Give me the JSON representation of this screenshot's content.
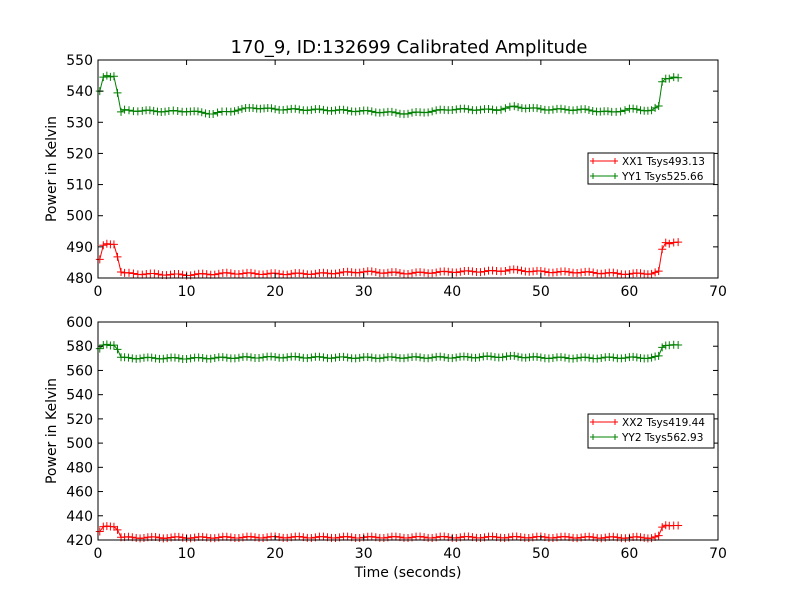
{
  "figure": {
    "title": "170_9, ID:132699 Calibrated Amplitude"
  },
  "chart_data": [
    {
      "type": "line",
      "title": "170_9, ID:132699 Calibrated Amplitude",
      "xlabel": "",
      "ylabel": "Power in Kelvin",
      "xlim": [
        0,
        70
      ],
      "ylim": [
        480,
        550
      ],
      "xticks": [
        "0",
        "10",
        "20",
        "30",
        "40",
        "50",
        "60",
        "70"
      ],
      "yticks": [
        "480",
        "490",
        "500",
        "510",
        "520",
        "530",
        "540",
        "550"
      ],
      "legend_position": "center-right",
      "marker": "plus",
      "series": [
        {
          "name": "XX1 Tsys493.13",
          "color": "#ff0000",
          "x": [
            0.2,
            0.6,
            1.0,
            1.4,
            1.8,
            2.2,
            2.6,
            3.0,
            5.0,
            10.0,
            15.0,
            20.0,
            25.0,
            30.0,
            35.0,
            40.0,
            45.0,
            46.5,
            50.0,
            55.0,
            60.0,
            62.5,
            63.3,
            63.7,
            64.1,
            64.5,
            65.0,
            65.5
          ],
          "y": [
            486.0,
            490.5,
            491.0,
            490.8,
            491.0,
            487.0,
            482.0,
            481.5,
            481.3,
            481.0,
            481.5,
            481.3,
            481.4,
            482.0,
            481.5,
            482.0,
            482.2,
            482.6,
            482.0,
            481.8,
            481.3,
            481.5,
            482.0,
            489.0,
            491.3,
            491.0,
            491.4,
            491.5
          ]
        },
        {
          "name": "YY1 Tsys525.66",
          "color": "#008000",
          "x": [
            0.2,
            0.6,
            1.0,
            1.4,
            1.8,
            2.2,
            2.6,
            3.0,
            5.0,
            8.0,
            10.0,
            13.0,
            15.0,
            17.5,
            20.0,
            25.0,
            30.0,
            35.0,
            40.0,
            45.0,
            47.0,
            50.0,
            55.0,
            58.0,
            60.0,
            62.5,
            63.3,
            63.7,
            64.1,
            64.5,
            65.0,
            65.5
          ],
          "y": [
            540.0,
            544.5,
            545.0,
            544.8,
            545.0,
            539.5,
            533.2,
            533.8,
            533.7,
            533.5,
            533.6,
            532.8,
            533.6,
            534.7,
            534.2,
            534.0,
            533.6,
            532.8,
            534.2,
            534.0,
            535.0,
            534.2,
            534.0,
            533.2,
            534.2,
            533.8,
            535.0,
            543.0,
            544.2,
            544.0,
            544.5,
            544.3
          ]
        }
      ]
    },
    {
      "type": "line",
      "title": "",
      "xlabel": "Time (seconds)",
      "ylabel": "Power in Kelvin",
      "xlim": [
        0,
        70
      ],
      "ylim": [
        420,
        600
      ],
      "xticks": [
        "0",
        "10",
        "20",
        "30",
        "40",
        "50",
        "60",
        "70"
      ],
      "yticks": [
        "420",
        "440",
        "460",
        "480",
        "500",
        "520",
        "540",
        "560",
        "580",
        "600"
      ],
      "legend_position": "center-right",
      "marker": "plus",
      "series": [
        {
          "name": "XX2 Tsys419.44",
          "color": "#ff0000",
          "x": [
            0.2,
            0.6,
            1.0,
            1.4,
            1.8,
            2.2,
            2.6,
            3.0,
            10.0,
            20.0,
            30.0,
            40.0,
            50.0,
            60.0,
            62.5,
            63.3,
            63.7,
            64.1,
            64.5,
            65.0,
            65.5
          ],
          "y": [
            427.0,
            431.0,
            431.5,
            431.2,
            431.5,
            429.0,
            422.5,
            422.0,
            422.0,
            422.3,
            422.2,
            422.3,
            422.3,
            422.0,
            422.0,
            423.0,
            430.0,
            432.0,
            431.8,
            432.0,
            432.0
          ]
        },
        {
          "name": "YY2 Tsys562.93",
          "color": "#008000",
          "x": [
            0.2,
            0.6,
            1.0,
            1.4,
            1.8,
            2.2,
            2.6,
            3.0,
            10.0,
            15.0,
            20.0,
            30.0,
            40.0,
            47.0,
            50.0,
            55.0,
            60.0,
            62.5,
            63.3,
            63.7,
            64.1,
            64.5,
            65.0,
            65.5
          ],
          "y": [
            578.0,
            581.0,
            581.5,
            581.2,
            581.5,
            577.5,
            570.5,
            570.3,
            570.0,
            570.5,
            571.0,
            570.5,
            570.8,
            571.5,
            570.5,
            570.3,
            570.6,
            570.4,
            571.5,
            579.0,
            581.0,
            580.8,
            581.2,
            581.0
          ]
        }
      ]
    }
  ]
}
